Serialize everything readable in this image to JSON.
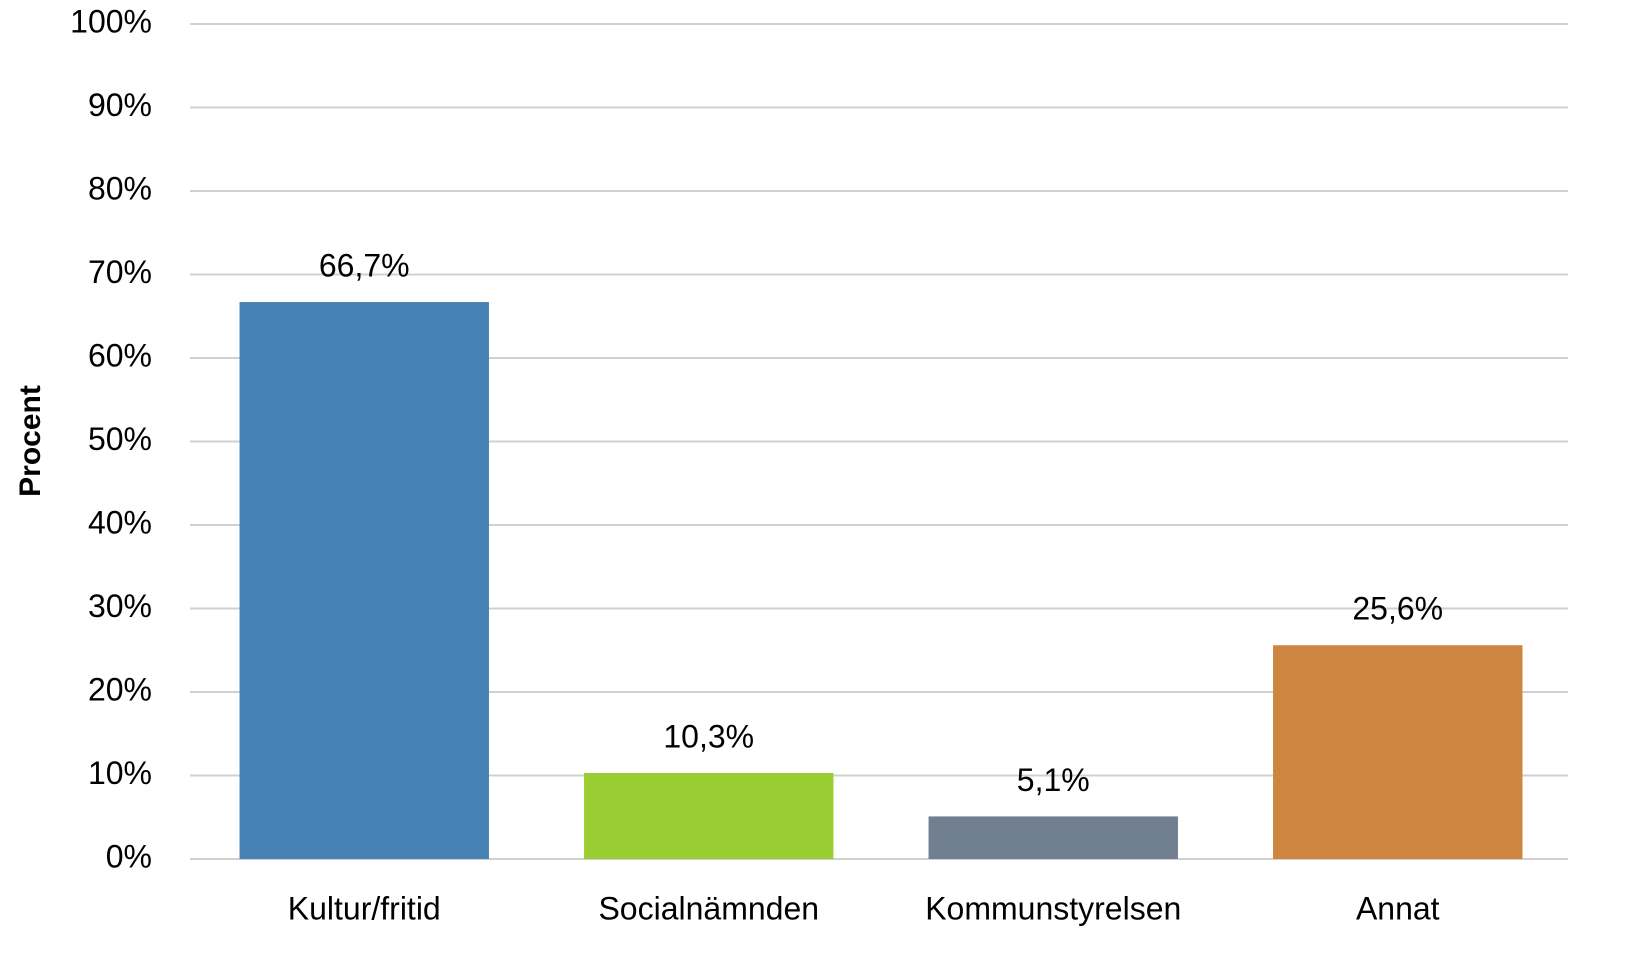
{
  "chart_data": {
    "type": "bar",
    "ylabel": "Procent",
    "categories": [
      "Kultur/fritid",
      "Socialnämnden",
      "Kommunstyrelsen",
      "Annat"
    ],
    "values": [
      66.7,
      10.3,
      5.1,
      25.6
    ],
    "value_labels": [
      "66,7%",
      "10,3%",
      "5,1%",
      "25,6%"
    ],
    "colors": [
      "#4682b4",
      "#9acd32",
      "#708090",
      "#cd853f"
    ],
    "ylim": [
      0,
      100
    ],
    "yticks": [
      {
        "value": 0,
        "label": "0%"
      },
      {
        "value": 10,
        "label": "10%"
      },
      {
        "value": 20,
        "label": "20%"
      },
      {
        "value": 30,
        "label": "30%"
      },
      {
        "value": 40,
        "label": "40%"
      },
      {
        "value": 50,
        "label": "50%"
      },
      {
        "value": 60,
        "label": "60%"
      },
      {
        "value": 70,
        "label": "70%"
      },
      {
        "value": 80,
        "label": "80%"
      },
      {
        "value": 90,
        "label": "90%"
      },
      {
        "value": 100,
        "label": "100%"
      }
    ],
    "grid": true
  }
}
